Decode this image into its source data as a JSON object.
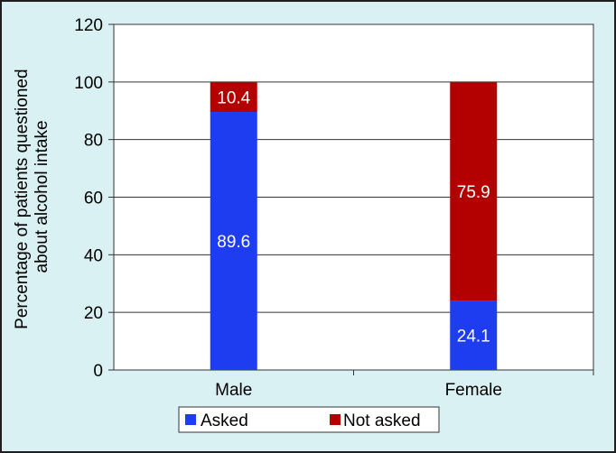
{
  "chart_data": {
    "type": "bar",
    "stacked": true,
    "categories": [
      "Male",
      "Female"
    ],
    "series": [
      {
        "name": "Asked",
        "color": "#1e3cf0",
        "values": [
          89.6,
          24.1
        ],
        "labels": [
          "89.6",
          "24.1"
        ]
      },
      {
        "name": "Not asked",
        "color": "#b30000",
        "values": [
          10.4,
          75.9
        ],
        "labels": [
          "10.4",
          "75.9"
        ]
      }
    ],
    "ylabel_lines": [
      "Percentage of patients questioned",
      "about alcohol intake"
    ],
    "ylim": [
      0,
      120
    ],
    "yticks": [
      0,
      20,
      40,
      60,
      80,
      100,
      120
    ],
    "grid": true,
    "legend_position": "bottom"
  }
}
